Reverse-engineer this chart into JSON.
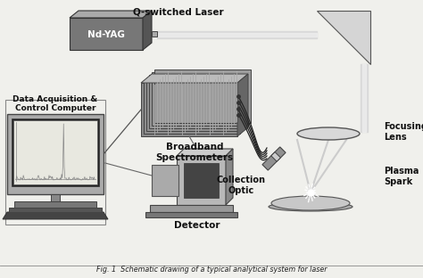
{
  "title": "Q-switched Laser",
  "caption": "Fig. 1  Schematic drawing of a typical analytical system for laser",
  "bg_color": "#efefef",
  "labels": {
    "laser": "Nd-YAG",
    "spectrometers": "Broadband\nSpectrometers",
    "computer": "Data Acquisition &\nControl Computer",
    "detector": "Detector",
    "collection": "Collection\nOptic",
    "focusing": "Focusing\nLens",
    "plasma": "Plasma\nSpark"
  }
}
